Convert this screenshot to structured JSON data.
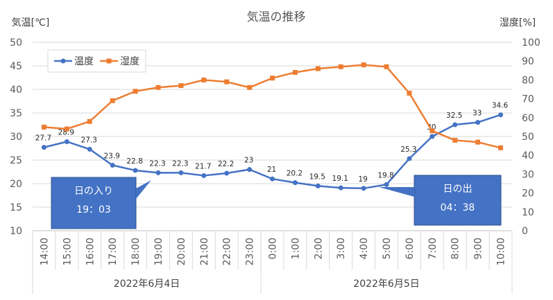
{
  "chart_data": {
    "type": "line",
    "title": "気温の推移",
    "y_left_label": "気温[℃]",
    "y_right_label": "湿度[%]",
    "ylim_left": [
      10,
      50
    ],
    "yticks_left": [
      10,
      15,
      20,
      25,
      30,
      35,
      40,
      45,
      50
    ],
    "ylim_right": [
      0,
      100
    ],
    "yticks_right": [
      0,
      10,
      20,
      30,
      40,
      50,
      60,
      70,
      80,
      90,
      100
    ],
    "categories": [
      "14:00",
      "15:00",
      "16:00",
      "17:00",
      "18:00",
      "19:00",
      "20:00",
      "21:00",
      "22:00",
      "23:00",
      "0:00",
      "1:00",
      "2:00",
      "3:00",
      "4:00",
      "5:00",
      "6:00",
      "7:00",
      "8:00",
      "9:00",
      "10:00"
    ],
    "date_groups": [
      {
        "label": "2022年6月4日",
        "count": 10
      },
      {
        "label": "2022年6月5日",
        "count": 11
      }
    ],
    "series": [
      {
        "name": "温度",
        "axis": "left",
        "color": "#4472C4",
        "marker": "circle",
        "values": [
          27.7,
          28.9,
          27.3,
          23.9,
          22.8,
          22.3,
          22.3,
          21.7,
          22.2,
          23,
          21,
          20.2,
          19.5,
          19.1,
          19,
          19.8,
          25.3,
          30,
          32.5,
          33,
          34.6
        ],
        "labels": [
          "27.7",
          "28.9",
          "27.3",
          "23.9",
          "22.8",
          "22.3",
          "22.3",
          "21.7",
          "22.2",
          "23",
          "21",
          "20.2",
          "19.5",
          "19.1",
          "19",
          "19.8",
          "25.3",
          "30",
          "32.5",
          "33",
          "34.6"
        ]
      },
      {
        "name": "湿度",
        "axis": "right",
        "color": "#ED7D31",
        "marker": "square",
        "values": [
          55,
          54,
          58,
          69,
          74,
          76,
          77,
          80,
          79,
          76,
          81,
          84,
          86,
          87,
          88,
          87,
          73,
          53,
          48,
          47,
          44
        ]
      }
    ],
    "legend_position": "top-left",
    "grid": true,
    "annotations": [
      {
        "lines": [
          "日の入り",
          "19：03"
        ],
        "color": "#4472C4"
      },
      {
        "lines": [
          "日の出",
          "04：38"
        ],
        "color": "#4472C4"
      }
    ]
  }
}
